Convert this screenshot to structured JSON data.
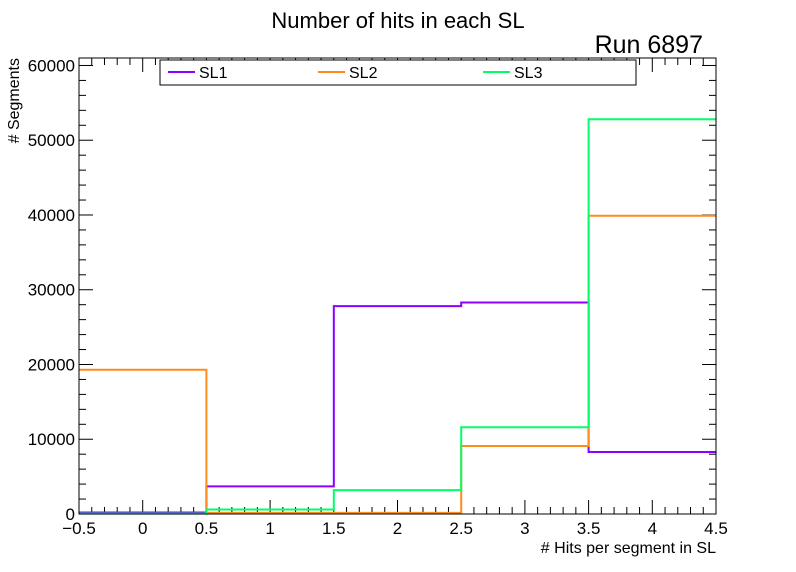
{
  "chart_data": {
    "type": "histogram-step",
    "title": "Number of hits in each SL",
    "annotation": "Run 6897",
    "xlabel": "# Hits per segment in SL",
    "ylabel": "# Segments",
    "xlim": [
      -0.5,
      4.5
    ],
    "ylim": [
      0,
      61000
    ],
    "bin_edges": [
      -0.5,
      0.5,
      1.5,
      2.5,
      3.5,
      4.5
    ],
    "x_major_ticks": [
      -0.5,
      0,
      0.5,
      1,
      1.5,
      2,
      2.5,
      3,
      3.5,
      4,
      4.5
    ],
    "x_tick_labels": [
      "−0.5",
      "0",
      "0.5",
      "1",
      "1.5",
      "2",
      "2.5",
      "3",
      "3.5",
      "4",
      "4.5"
    ],
    "y_major_ticks": [
      0,
      10000,
      20000,
      30000,
      40000,
      50000,
      60000
    ],
    "y_tick_labels": [
      "0",
      "10000",
      "20000",
      "30000",
      "40000",
      "50000",
      "60000"
    ],
    "grid": false,
    "legend_position": "top",
    "series": [
      {
        "name": "SL1",
        "color": "#8b00ff",
        "values": [
          200,
          3700,
          27800,
          28300,
          8300
        ]
      },
      {
        "name": "SL2",
        "color": "#ff8c1a",
        "values": [
          19300,
          150,
          150,
          9100,
          39900
        ]
      },
      {
        "name": "SL3",
        "color": "#00ff6a",
        "values": [
          50,
          600,
          3200,
          11600,
          52800
        ]
      }
    ]
  }
}
